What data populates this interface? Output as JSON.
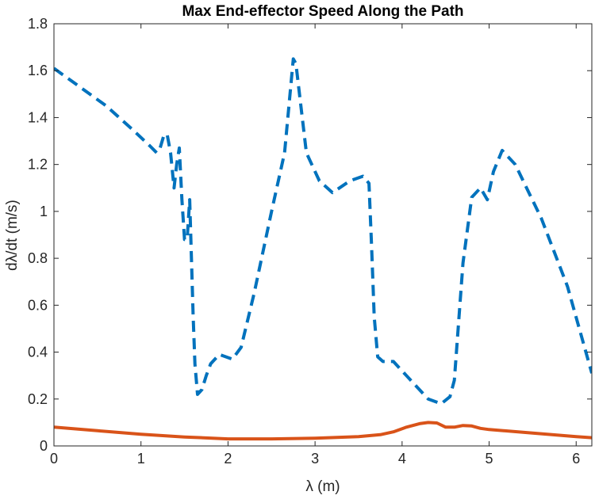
{
  "chart_data": {
    "type": "line",
    "title": "Max End-effector Speed Along the Path",
    "xlabel": "λ (m)",
    "ylabel": "dλ/dt  (m/s)",
    "xlim": [
      0,
      6.18
    ],
    "ylim": [
      0,
      1.8
    ],
    "xticks": [
      "0",
      "1",
      "2",
      "3",
      "4",
      "5",
      "6"
    ],
    "yticks": [
      "0",
      "0.2",
      "0.4",
      "0.6",
      "0.8",
      "1",
      "1.2",
      "1.4",
      "1.6",
      "1.8"
    ],
    "grid": false,
    "legend": "none",
    "series": [
      {
        "style": "dashed",
        "color": "#0072BD",
        "x": [
          0,
          0.3,
          0.6,
          0.9,
          1.1,
          1.18,
          1.22,
          1.26,
          1.3,
          1.34,
          1.38,
          1.41,
          1.44,
          1.47,
          1.5,
          1.53,
          1.56,
          1.6,
          1.62,
          1.65,
          1.7,
          1.75,
          1.8,
          1.9,
          2.05,
          2.15,
          2.3,
          2.5,
          2.65,
          2.75,
          2.78,
          2.9,
          3.05,
          3.2,
          3.4,
          3.55,
          3.62,
          3.65,
          3.68,
          3.72,
          3.78,
          3.9,
          4.05,
          4.3,
          4.45,
          4.55,
          4.6,
          4.7,
          4.8,
          4.9,
          4.98,
          5.05,
          5.15,
          5.3,
          5.6,
          5.9,
          6.18
        ],
        "y": [
          1.61,
          1.53,
          1.45,
          1.35,
          1.28,
          1.25,
          1.27,
          1.32,
          1.33,
          1.25,
          1.1,
          1.2,
          1.27,
          1.05,
          0.88,
          0.88,
          1.05,
          0.55,
          0.35,
          0.22,
          0.24,
          0.3,
          0.35,
          0.39,
          0.37,
          0.42,
          0.65,
          1.0,
          1.25,
          1.65,
          1.63,
          1.25,
          1.13,
          1.08,
          1.13,
          1.15,
          1.12,
          0.85,
          0.55,
          0.38,
          0.36,
          0.36,
          0.3,
          0.2,
          0.18,
          0.21,
          0.28,
          0.78,
          1.06,
          1.1,
          1.05,
          1.17,
          1.26,
          1.2,
          0.97,
          0.68,
          0.31
        ]
      },
      {
        "style": "solid",
        "color": "#D95319",
        "x": [
          0,
          0.5,
          1.0,
          1.5,
          2.0,
          2.5,
          3.0,
          3.5,
          3.75,
          3.9,
          4.05,
          4.2,
          4.3,
          4.4,
          4.5,
          4.6,
          4.7,
          4.8,
          4.9,
          5.0,
          5.5,
          6.0,
          6.18
        ],
        "y": [
          0.08,
          0.065,
          0.05,
          0.038,
          0.03,
          0.03,
          0.033,
          0.04,
          0.048,
          0.06,
          0.08,
          0.095,
          0.1,
          0.098,
          0.08,
          0.08,
          0.087,
          0.085,
          0.075,
          0.07,
          0.055,
          0.04,
          0.035
        ]
      }
    ]
  }
}
